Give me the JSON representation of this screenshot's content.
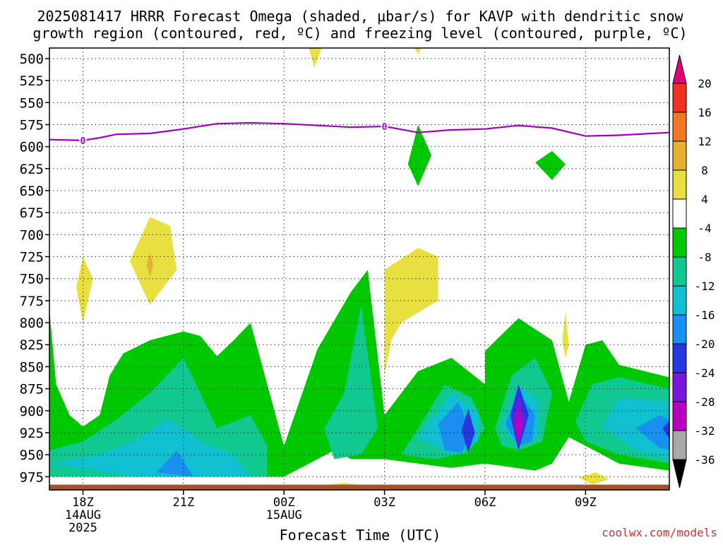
{
  "chart_data": {
    "type": "heatmap",
    "title_lines": [
      "2025081417 HRRR Forecast Omega (shaded, μbar/s) for KAVP with dendritic snow",
      "growth region (contoured, red, ºC) and freezing level (contoured, purple, ºC)"
    ],
    "xlabel": "Forecast Time (UTC)",
    "ylabel": "",
    "credit": "coolwx.com/models",
    "y_axis": {
      "unit": "hPa",
      "ticks": [
        500,
        525,
        550,
        575,
        600,
        625,
        650,
        675,
        700,
        725,
        750,
        775,
        800,
        825,
        850,
        875,
        900,
        925,
        950,
        975
      ],
      "range": [
        488,
        990
      ],
      "reversed": true
    },
    "x_axis": {
      "range_hours": [
        -1,
        17.5
      ],
      "ticks": [
        {
          "hour": 0,
          "lines": [
            "18Z",
            "14AUG",
            "2025"
          ]
        },
        {
          "hour": 3,
          "lines": [
            "21Z"
          ]
        },
        {
          "hour": 6,
          "lines": [
            "00Z",
            "15AUG"
          ]
        },
        {
          "hour": 9,
          "lines": [
            "03Z"
          ]
        },
        {
          "hour": 12,
          "lines": [
            "06Z"
          ]
        },
        {
          "hour": 15,
          "lines": [
            "09Z"
          ]
        }
      ]
    },
    "grid": true,
    "colorbar": {
      "labels": [
        "20",
        "16",
        "12",
        "8",
        "4",
        "-4",
        "-8",
        "-12",
        "-16",
        "-20",
        "-24",
        "-28",
        "-32",
        "-36"
      ],
      "colors": {
        "above_20": "#e0007c",
        "16_20": "#f03020",
        "12_16": "#f07820",
        "8_12": "#e8b030",
        "4_8": "#e8e040",
        "neutral": "#ffffff",
        "m8_m4": "#00c800",
        "m12_m8": "#10c890",
        "m16_m12": "#10c0d0",
        "m20_m16": "#1890f0",
        "m24_m20": "#2838e0",
        "m28_m24": "#7818d8",
        "m32_m28": "#b800c0",
        "m36_m32": "#a8a8a8",
        "below_m36": "#000000"
      }
    },
    "freezing_level": {
      "color": "#a000c0",
      "label": "0",
      "label_hours": [
        0,
        9
      ],
      "points": [
        [
          -1,
          592
        ],
        [
          0,
          593
        ],
        [
          0.5,
          590
        ],
        [
          1,
          586
        ],
        [
          2,
          585
        ],
        [
          3,
          580
        ],
        [
          4,
          574
        ],
        [
          5,
          573
        ],
        [
          6,
          574
        ],
        [
          7,
          576
        ],
        [
          8,
          578
        ],
        [
          9,
          577
        ],
        [
          10,
          584
        ],
        [
          11,
          581
        ],
        [
          12,
          580
        ],
        [
          13,
          576
        ],
        [
          14,
          579
        ],
        [
          15,
          588
        ],
        [
          16,
          587
        ],
        [
          17.5,
          584
        ]
      ]
    },
    "ground": {
      "color": "#a0522d",
      "pressure_top": 984
    },
    "shaded_regions": [
      {
        "value": "-8_-4",
        "color": "#00c800",
        "points": [
          [
            -1,
            785
          ],
          [
            -0.8,
            870
          ],
          [
            -0.4,
            905
          ],
          [
            0,
            918
          ],
          [
            0.5,
            905
          ],
          [
            0.8,
            860
          ],
          [
            1.2,
            835
          ],
          [
            2,
            820
          ],
          [
            3,
            810
          ],
          [
            3.5,
            815
          ],
          [
            4,
            838
          ],
          [
            4.5,
            820
          ],
          [
            5,
            800
          ],
          [
            6,
            940
          ],
          [
            7,
            830
          ],
          [
            8,
            765
          ],
          [
            8.5,
            740
          ],
          [
            9,
            905
          ],
          [
            10,
            855
          ],
          [
            11,
            840
          ],
          [
            12,
            870
          ],
          [
            12,
            832
          ],
          [
            13,
            795
          ],
          [
            14,
            820
          ],
          [
            14.5,
            890
          ],
          [
            15,
            825
          ],
          [
            15.5,
            820
          ],
          [
            16,
            848
          ],
          [
            17.5,
            862
          ],
          [
            17.5,
            968
          ],
          [
            16,
            960
          ],
          [
            15,
            940
          ],
          [
            14.5,
            930
          ],
          [
            14,
            960
          ],
          [
            13.5,
            968
          ],
          [
            12,
            960
          ],
          [
            11,
            965
          ],
          [
            10,
            960
          ],
          [
            9,
            955
          ],
          [
            8.5,
            955
          ],
          [
            8,
            955
          ],
          [
            7.5,
            945
          ],
          [
            7,
            955
          ],
          [
            6,
            975
          ],
          [
            -1,
            975
          ]
        ]
      },
      {
        "value": "-12_-8",
        "color": "#10c890",
        "points": [
          [
            -1,
            945
          ],
          [
            0,
            935
          ],
          [
            1,
            910
          ],
          [
            2,
            880
          ],
          [
            3,
            840
          ],
          [
            3.5,
            880
          ],
          [
            4,
            920
          ],
          [
            5,
            905
          ],
          [
            5.5,
            940
          ],
          [
            5.5,
            975
          ],
          [
            -1,
            975
          ]
        ]
      },
      {
        "value": "-12_-8",
        "color": "#10c890",
        "points": [
          [
            7.2,
            920
          ],
          [
            7.8,
            880
          ],
          [
            8.3,
            780
          ],
          [
            8.8,
            920
          ],
          [
            8.3,
            950
          ],
          [
            7.5,
            955
          ]
        ]
      },
      {
        "value": "-12_-8",
        "color": "#10c890",
        "points": [
          [
            9.5,
            950
          ],
          [
            10,
            920
          ],
          [
            10.8,
            870
          ],
          [
            11.6,
            885
          ],
          [
            12,
            920
          ],
          [
            11.5,
            948
          ],
          [
            10.5,
            955
          ]
        ]
      },
      {
        "value": "-12_-8",
        "color": "#10c890",
        "points": [
          [
            12.3,
            920
          ],
          [
            12.8,
            860
          ],
          [
            13.5,
            840
          ],
          [
            14,
            880
          ],
          [
            13.7,
            935
          ],
          [
            13,
            945
          ],
          [
            12.5,
            940
          ]
        ]
      },
      {
        "value": "-12_-8",
        "color": "#10c890",
        "points": [
          [
            14.7,
            912
          ],
          [
            15.2,
            870
          ],
          [
            16,
            862
          ],
          [
            17.5,
            875
          ],
          [
            17.5,
            960
          ],
          [
            16,
            950
          ],
          [
            15,
            935
          ]
        ]
      },
      {
        "value": "-16_-12",
        "color": "#10c0d0",
        "points": [
          [
            -1,
            960
          ],
          [
            0.5,
            950
          ],
          [
            1.5,
            935
          ],
          [
            2.5,
            910
          ],
          [
            3,
            920
          ],
          [
            3.5,
            935
          ],
          [
            4.5,
            950
          ],
          [
            5,
            975
          ],
          [
            1.5,
            975
          ]
        ]
      },
      {
        "value": "-16_-12",
        "color": "#10c0d0",
        "points": [
          [
            10,
            930
          ],
          [
            10.5,
            905
          ],
          [
            11,
            880
          ],
          [
            11.8,
            900
          ],
          [
            11.8,
            935
          ],
          [
            11,
            950
          ]
        ]
      },
      {
        "value": "-16_-12",
        "color": "#10c0d0",
        "points": [
          [
            12.5,
            920
          ],
          [
            13,
            870
          ],
          [
            13.6,
            890
          ],
          [
            13.6,
            930
          ],
          [
            13,
            940
          ]
        ]
      },
      {
        "value": "-16_-12",
        "color": "#10c0d0",
        "points": [
          [
            15.5,
            918
          ],
          [
            16,
            885
          ],
          [
            17.5,
            890
          ],
          [
            17.5,
            955
          ],
          [
            16.5,
            945
          ]
        ]
      },
      {
        "value": "-20_-16",
        "color": "#1890f0",
        "points": [
          [
            2.2,
            970
          ],
          [
            2.8,
            945
          ],
          [
            3.3,
            975
          ]
        ]
      },
      {
        "value": "-20_-16",
        "color": "#1890f0",
        "points": [
          [
            10.6,
            915
          ],
          [
            11.2,
            890
          ],
          [
            11.6,
            925
          ],
          [
            11.3,
            948
          ],
          [
            10.8,
            945
          ]
        ]
      },
      {
        "value": "-20_-16",
        "color": "#1890f0",
        "points": [
          [
            12.6,
            915
          ],
          [
            13,
            880
          ],
          [
            13.5,
            905
          ],
          [
            13.4,
            935
          ],
          [
            13,
            940
          ]
        ]
      },
      {
        "value": "-20_-16",
        "color": "#1890f0",
        "points": [
          [
            16.5,
            920
          ],
          [
            17.2,
            905
          ],
          [
            17.5,
            910
          ],
          [
            17.5,
            945
          ],
          [
            17.2,
            942
          ]
        ]
      },
      {
        "value": "-24_-20",
        "color": "#2838e0",
        "points": [
          [
            11.3,
            922
          ],
          [
            11.5,
            898
          ],
          [
            11.7,
            925
          ],
          [
            11.5,
            948
          ]
        ]
      },
      {
        "value": "-24_-20",
        "color": "#2838e0",
        "points": [
          [
            17.3,
            920
          ],
          [
            17.5,
            912
          ],
          [
            17.5,
            932
          ]
        ]
      },
      {
        "value": "-24_-20",
        "color": "#2838e0",
        "points": [
          [
            12.75,
            905
          ],
          [
            13,
            870
          ],
          [
            13.3,
            905
          ],
          [
            13,
            945
          ]
        ]
      },
      {
        "value": "-28_-24",
        "color": "#7818d8",
        "points": [
          [
            12.82,
            912
          ],
          [
            13,
            882
          ],
          [
            13.2,
            912
          ],
          [
            13,
            940
          ]
        ]
      },
      {
        "value": "-32_-28",
        "color": "#b800c0",
        "points": [
          [
            12.9,
            918
          ],
          [
            13,
            895
          ],
          [
            13.1,
            918
          ],
          [
            13,
            935
          ]
        ]
      },
      {
        "value": "4_8",
        "color": "#e8e040",
        "points": [
          [
            -0.2,
            760
          ],
          [
            0,
            725
          ],
          [
            0.3,
            750
          ],
          [
            0,
            800
          ]
        ]
      },
      {
        "value": "4_8",
        "color": "#e8e040",
        "points": [
          [
            1.4,
            730
          ],
          [
            2,
            680
          ],
          [
            2.6,
            690
          ],
          [
            2.8,
            740
          ],
          [
            2,
            780
          ]
        ]
      },
      {
        "value": "4_8",
        "color": "#e8e040",
        "points": [
          [
            6.7,
            482
          ],
          [
            6.9,
            510
          ],
          [
            7.2,
            482
          ]
        ]
      },
      {
        "value": "4_8",
        "color": "#e8e040",
        "points": [
          [
            9.8,
            482
          ],
          [
            10,
            495
          ],
          [
            10.2,
            482
          ]
        ]
      },
      {
        "value": "4_8",
        "color": "#e8e040",
        "points": [
          [
            9,
            740
          ],
          [
            10,
            715
          ],
          [
            10.6,
            725
          ],
          [
            10.6,
            775
          ],
          [
            9.5,
            800
          ],
          [
            9.2,
            820
          ],
          [
            9,
            860
          ]
        ]
      },
      {
        "value": "4_8",
        "color": "#e8e040",
        "points": [
          [
            14.3,
            820
          ],
          [
            14.4,
            788
          ],
          [
            14.5,
            825
          ],
          [
            14.4,
            840
          ]
        ]
      },
      {
        "value": "4_8",
        "color": "#e8e040",
        "points": [
          [
            14.8,
            976
          ],
          [
            15.3,
            970
          ],
          [
            15.7,
            978
          ],
          [
            15.2,
            984
          ]
        ]
      },
      {
        "value": "4_8",
        "color": "#e8e040",
        "points": [
          [
            7.3,
            984
          ],
          [
            7.8,
            982
          ],
          [
            8.2,
            984
          ]
        ]
      },
      {
        "value": "8_12",
        "color": "#e8b030",
        "points": [
          [
            2,
            720
          ],
          [
            2.1,
            735
          ],
          [
            2,
            748
          ],
          [
            1.9,
            735
          ]
        ]
      },
      {
        "value": "-8_-4",
        "color": "#00c800",
        "points": [
          [
            9.7,
            620
          ],
          [
            10,
            575
          ],
          [
            10.4,
            610
          ],
          [
            10,
            645
          ]
        ]
      },
      {
        "value": "-8_-4",
        "color": "#00c800",
        "points": [
          [
            13.5,
            618
          ],
          [
            14,
            605
          ],
          [
            14.4,
            620
          ],
          [
            14,
            638
          ]
        ]
      }
    ]
  }
}
